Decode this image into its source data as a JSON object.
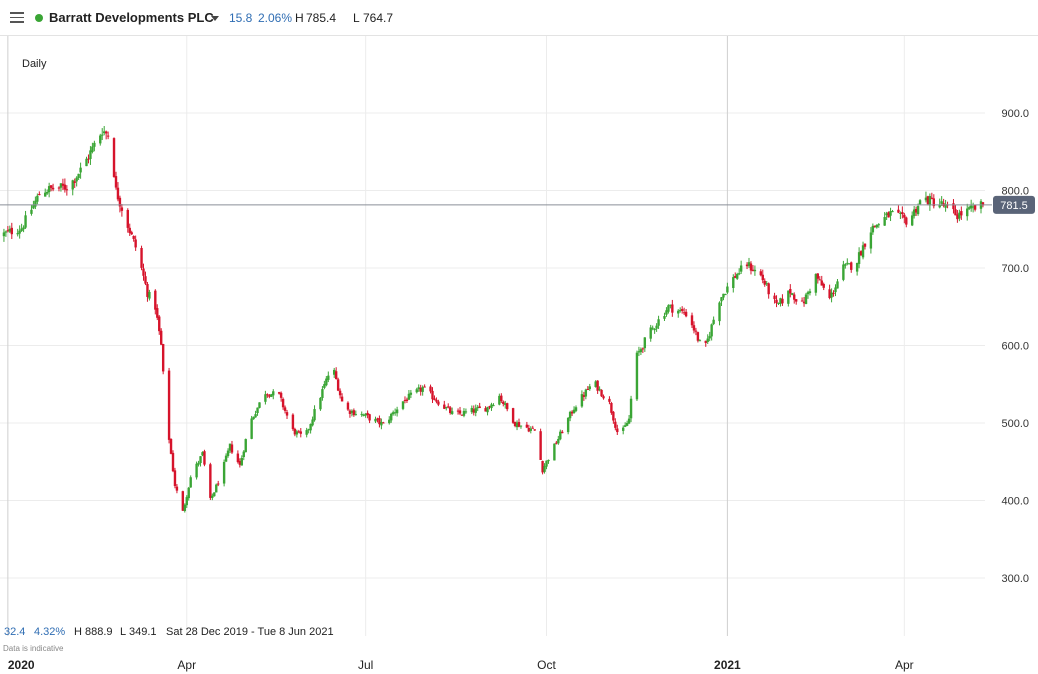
{
  "header": {
    "menu_icon": "hamburger-menu-icon",
    "instrument": "Barratt Developments PLC",
    "change": "15.8",
    "change_pct": "2.06%",
    "high_label": "H",
    "high": "785.4",
    "low_label": "L",
    "low": "764.7",
    "status_color": "#3aa535"
  },
  "interval": "Daily",
  "footer": {
    "change": "32.4",
    "change_pct": "4.32%",
    "high_label": "H",
    "high": "888.9",
    "low_label": "L",
    "low": "349.1",
    "range": "Sat 28 Dec 2019 - Tue 8 Jun 2021",
    "disclaimer": "Data is indicative"
  },
  "colors": {
    "up": "#3aa535",
    "down": "#d6132b",
    "accent": "#2f6db3",
    "last_price_bg": "#5a6478"
  },
  "chart_data": {
    "type": "candlestick",
    "x_range": [
      "2019-12-28",
      "2021-06-08"
    ],
    "ylim": [
      260,
      960
    ],
    "y_ticks": [
      300,
      400,
      500,
      600,
      700,
      800,
      900
    ],
    "y_tick_labels": [
      "300.0",
      "400.0",
      "500.0",
      "600.0",
      "700.0",
      "800.0",
      "900.0"
    ],
    "x_ticks": [
      {
        "date": "2020-01-01",
        "label": "2020",
        "bold": true
      },
      {
        "date": "2020-04-01",
        "label": "Apr",
        "bold": false
      },
      {
        "date": "2020-07-01",
        "label": "Jul",
        "bold": false
      },
      {
        "date": "2020-10-01",
        "label": "Oct",
        "bold": false
      },
      {
        "date": "2021-01-01",
        "label": "2021",
        "bold": true
      },
      {
        "date": "2021-04-01",
        "label": "Apr",
        "bold": false
      }
    ],
    "last_price": 781.5,
    "last_price_label": "781.5",
    "grid": true,
    "close_path": [
      [
        "2019-12-28",
        742
      ],
      [
        "2020-01-08",
        752
      ],
      [
        "2020-01-18",
        800
      ],
      [
        "2020-02-01",
        805
      ],
      [
        "2020-02-08",
        830
      ],
      [
        "2020-02-18",
        878
      ],
      [
        "2020-02-22",
        870
      ],
      [
        "2020-02-25",
        800
      ],
      [
        "2020-03-02",
        755
      ],
      [
        "2020-03-07",
        720
      ],
      [
        "2020-03-12",
        668
      ],
      [
        "2020-03-16",
        650
      ],
      [
        "2020-03-19",
        600
      ],
      [
        "2020-03-21",
        525
      ],
      [
        "2020-03-23",
        480
      ],
      [
        "2020-03-26",
        420
      ],
      [
        "2020-03-30",
        385
      ],
      [
        "2020-04-03",
        430
      ],
      [
        "2020-04-09",
        460
      ],
      [
        "2020-04-13",
        400
      ],
      [
        "2020-04-18",
        430
      ],
      [
        "2020-04-23",
        470
      ],
      [
        "2020-04-28",
        445
      ],
      [
        "2020-05-03",
        500
      ],
      [
        "2020-05-11",
        540
      ],
      [
        "2020-05-18",
        535
      ],
      [
        "2020-05-25",
        490
      ],
      [
        "2020-05-31",
        480
      ],
      [
        "2020-06-08",
        535
      ],
      [
        "2020-06-14",
        575
      ],
      [
        "2020-06-20",
        518
      ],
      [
        "2020-06-30",
        510
      ],
      [
        "2020-07-10",
        498
      ],
      [
        "2020-07-20",
        528
      ],
      [
        "2020-07-30",
        545
      ],
      [
        "2020-08-15",
        510
      ],
      [
        "2020-09-01",
        520
      ],
      [
        "2020-09-07",
        535
      ],
      [
        "2020-09-15",
        500
      ],
      [
        "2020-09-25",
        490
      ],
      [
        "2020-09-29",
        440
      ],
      [
        "2020-10-05",
        470
      ],
      [
        "2020-10-15",
        520
      ],
      [
        "2020-10-25",
        553
      ],
      [
        "2020-11-02",
        525
      ],
      [
        "2020-11-07",
        480
      ],
      [
        "2020-11-12",
        505
      ],
      [
        "2020-11-15",
        582
      ],
      [
        "2020-11-22",
        615
      ],
      [
        "2020-12-02",
        650
      ],
      [
        "2020-12-12",
        640
      ],
      [
        "2020-12-20",
        590
      ],
      [
        "2020-12-28",
        660
      ],
      [
        "2021-01-05",
        690
      ],
      [
        "2021-01-11",
        705
      ],
      [
        "2021-01-18",
        690
      ],
      [
        "2021-01-26",
        650
      ],
      [
        "2021-02-02",
        670
      ],
      [
        "2021-02-08",
        652
      ],
      [
        "2021-02-15",
        690
      ],
      [
        "2021-02-22",
        660
      ],
      [
        "2021-03-01",
        700
      ],
      [
        "2021-03-07",
        705
      ],
      [
        "2021-03-15",
        750
      ],
      [
        "2021-03-25",
        770
      ],
      [
        "2021-04-03",
        760
      ],
      [
        "2021-04-10",
        790
      ],
      [
        "2021-04-20",
        782
      ],
      [
        "2021-04-28",
        768
      ],
      [
        "2021-05-05",
        775
      ],
      [
        "2021-05-11",
        781
      ]
    ]
  }
}
